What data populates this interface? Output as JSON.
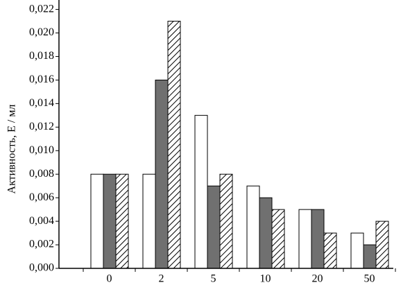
{
  "chart_data": {
    "type": "bar",
    "ylabel": "Активность, Е / мл",
    "categories": [
      "0",
      "2",
      "5",
      "10",
      "20",
      "50"
    ],
    "series": [
      {
        "color": "#ffffff",
        "hatch": false,
        "values": [
          0.008,
          0.008,
          0.013,
          0.007,
          0.005,
          0.003
        ]
      },
      {
        "color": "#707070",
        "hatch": false,
        "values": [
          0.008,
          0.016,
          0.007,
          0.006,
          0.005,
          0.002
        ]
      },
      {
        "color": "#ffffff",
        "hatch": true,
        "values": [
          0.008,
          0.021,
          0.008,
          0.005,
          0.003,
          0.004
        ]
      }
    ],
    "ylim": [
      0,
      0.0228
    ],
    "yticks": [
      {
        "value": 0,
        "label": "0,000"
      },
      {
        "value": 0.002,
        "label": "0,002"
      },
      {
        "value": 0.004,
        "label": "0,004"
      },
      {
        "value": 0.006,
        "label": "0,006"
      },
      {
        "value": 0.008,
        "label": "0,008"
      },
      {
        "value": 0.01,
        "label": "0,010"
      },
      {
        "value": 0.012,
        "label": "0,012"
      },
      {
        "value": 0.014,
        "label": "0,014"
      },
      {
        "value": 0.016,
        "label": "0,016"
      },
      {
        "value": 0.018,
        "label": "0,018"
      },
      {
        "value": 0.02,
        "label": "0,020"
      },
      {
        "value": 0.022,
        "label": "0,022"
      }
    ],
    "grid": false
  }
}
